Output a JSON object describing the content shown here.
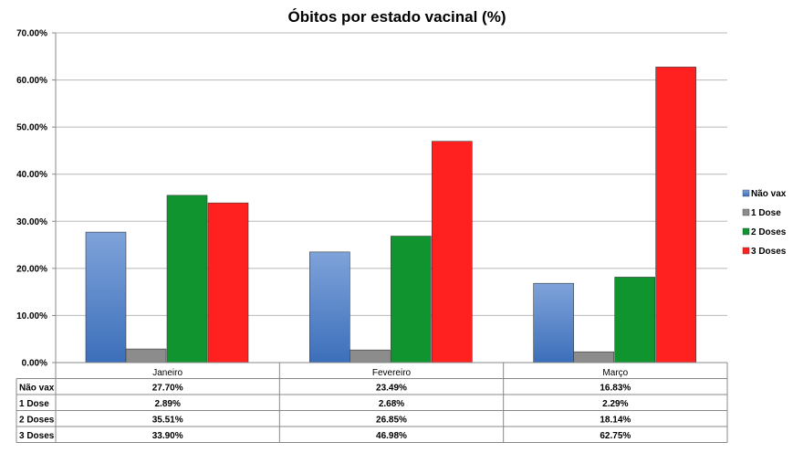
{
  "chart_data": {
    "type": "bar",
    "title": "Óbitos por estado vacinal (%)",
    "xlabel": "",
    "ylabel": "",
    "ylim": [
      0,
      70
    ],
    "y_ticks": [
      "0.00%",
      "10.00%",
      "20.00%",
      "30.00%",
      "40.00%",
      "50.00%",
      "60.00%",
      "70.00%"
    ],
    "categories": [
      "Janeiro",
      "Fevereiro",
      "Março"
    ],
    "grid": true,
    "legend_position": "right",
    "series": [
      {
        "name": "Não vax",
        "color": "#4a7cc4",
        "values": [
          27.7,
          23.49,
          16.83
        ],
        "labels": [
          "27.70%",
          "23.49%",
          "16.83%"
        ]
      },
      {
        "name": "1 Dose",
        "color": "#8c8c8c",
        "values": [
          2.89,
          2.68,
          2.29
        ],
        "labels": [
          "2.89%",
          "2.68%",
          "2.29%"
        ]
      },
      {
        "name": "2 Doses",
        "color": "#0f9430",
        "values": [
          35.51,
          26.85,
          18.14
        ],
        "labels": [
          "35.51%",
          "26.85%",
          "18.14%"
        ]
      },
      {
        "name": "3 Doses",
        "color": "#ff2020",
        "values": [
          33.9,
          46.98,
          62.75
        ],
        "labels": [
          "33.90%",
          "46.98%",
          "62.75%"
        ]
      }
    ]
  }
}
